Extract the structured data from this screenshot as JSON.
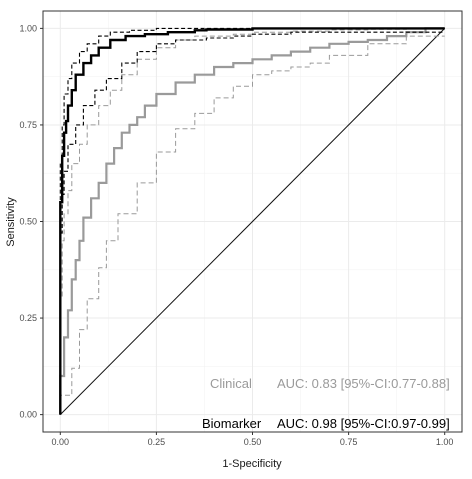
{
  "chart_data": {
    "type": "line",
    "xlabel": "1-Specificity",
    "ylabel": "Sensitivity",
    "xlim": [
      0,
      1
    ],
    "ylim": [
      0,
      1
    ],
    "x_ticks": [
      "0.00",
      "0.25",
      "0.50",
      "0.75",
      "1.00"
    ],
    "y_ticks": [
      "0.00",
      "0.25",
      "0.50",
      "0.75",
      "1.00"
    ],
    "grid": true,
    "reference_line": {
      "x": [
        0,
        1
      ],
      "y": [
        0,
        1
      ]
    },
    "colors": {
      "biomarker": "#000000",
      "clinical": "#9a9a9a",
      "grid": "#ebebeb",
      "panel_border": "#333333"
    },
    "series": [
      {
        "key": "biomarker",
        "x": [
          0,
          0,
          0.005,
          0.01,
          0.015,
          0.02,
          0.03,
          0.04,
          0.06,
          0.08,
          0.1,
          0.13,
          0.17,
          0.22,
          0.28,
          0.35,
          0.38,
          0.5,
          0.7,
          0.85,
          1.0
        ],
        "y": [
          0,
          0.35,
          0.55,
          0.67,
          0.73,
          0.76,
          0.8,
          0.84,
          0.88,
          0.91,
          0.93,
          0.95,
          0.97,
          0.98,
          0.985,
          0.99,
          0.995,
          0.997,
          1.0,
          1.0,
          1.0
        ]
      },
      {
        "key": "biomarker-ci-upper",
        "style": "dashed",
        "x": [
          0,
          0,
          0.005,
          0.01,
          0.02,
          0.03,
          0.05,
          0.07,
          0.1,
          0.13,
          0.18,
          0.25,
          0.3,
          0.5,
          1.0
        ],
        "y": [
          0,
          0.45,
          0.65,
          0.75,
          0.83,
          0.87,
          0.91,
          0.94,
          0.96,
          0.98,
          0.99,
          0.995,
          1.0,
          1.0,
          1.0
        ]
      },
      {
        "key": "biomarker-ci-lower",
        "style": "dashed",
        "x": [
          0,
          0,
          0.005,
          0.01,
          0.02,
          0.04,
          0.06,
          0.09,
          0.12,
          0.16,
          0.2,
          0.25,
          0.3,
          0.38,
          0.45,
          0.5,
          0.6,
          1.0
        ],
        "y": [
          0,
          0.25,
          0.47,
          0.57,
          0.63,
          0.7,
          0.75,
          0.8,
          0.84,
          0.87,
          0.91,
          0.94,
          0.96,
          0.97,
          0.975,
          0.98,
          0.985,
          0.99
        ]
      },
      {
        "key": "clinical",
        "x": [
          0,
          0.01,
          0.02,
          0.03,
          0.04,
          0.05,
          0.06,
          0.08,
          0.1,
          0.12,
          0.14,
          0.16,
          0.18,
          0.2,
          0.22,
          0.25,
          0.3,
          0.35,
          0.4,
          0.45,
          0.5,
          0.55,
          0.6,
          0.65,
          0.7,
          0.75,
          0.8,
          0.85,
          0.9,
          0.95,
          1.0
        ],
        "y": [
          0,
          0.1,
          0.2,
          0.27,
          0.35,
          0.4,
          0.45,
          0.51,
          0.56,
          0.6,
          0.65,
          0.69,
          0.73,
          0.75,
          0.77,
          0.8,
          0.83,
          0.86,
          0.88,
          0.9,
          0.91,
          0.92,
          0.93,
          0.94,
          0.95,
          0.96,
          0.965,
          0.97,
          0.98,
          0.99,
          1.0
        ]
      },
      {
        "key": "clinical-ci-upper",
        "style": "dashed",
        "x": [
          0,
          0.005,
          0.01,
          0.02,
          0.03,
          0.05,
          0.07,
          0.1,
          0.13,
          0.16,
          0.2,
          0.25,
          0.3,
          0.35,
          0.45,
          0.5,
          0.6,
          0.7,
          0.8,
          0.9,
          1.0
        ],
        "y": [
          0,
          0.3,
          0.45,
          0.52,
          0.58,
          0.65,
          0.7,
          0.75,
          0.8,
          0.84,
          0.88,
          0.92,
          0.95,
          0.97,
          0.98,
          0.985,
          0.99,
          0.993,
          0.996,
          0.998,
          1.0
        ]
      },
      {
        "key": "clinical-ci-lower",
        "style": "dashed",
        "x": [
          0,
          0.03,
          0.05,
          0.07,
          0.1,
          0.12,
          0.15,
          0.2,
          0.25,
          0.3,
          0.35,
          0.4,
          0.45,
          0.5,
          0.55,
          0.6,
          0.65,
          0.7,
          0.8,
          0.9,
          1.0
        ],
        "y": [
          0,
          0.05,
          0.12,
          0.22,
          0.3,
          0.38,
          0.45,
          0.52,
          0.6,
          0.68,
          0.74,
          0.78,
          0.82,
          0.85,
          0.88,
          0.89,
          0.9,
          0.91,
          0.93,
          0.96,
          0.98
        ]
      }
    ],
    "annotations": [
      {
        "key": "clinical",
        "label": "Clinical",
        "text": "AUC: 0.83 [95%-CI:0.77-0.88]",
        "color": "#9a9a9a"
      },
      {
        "key": "biomarker",
        "label": "Biomarker",
        "text": "AUC: 0.98 [95%-CI:0.97-0.99]",
        "color": "#000000"
      }
    ]
  }
}
